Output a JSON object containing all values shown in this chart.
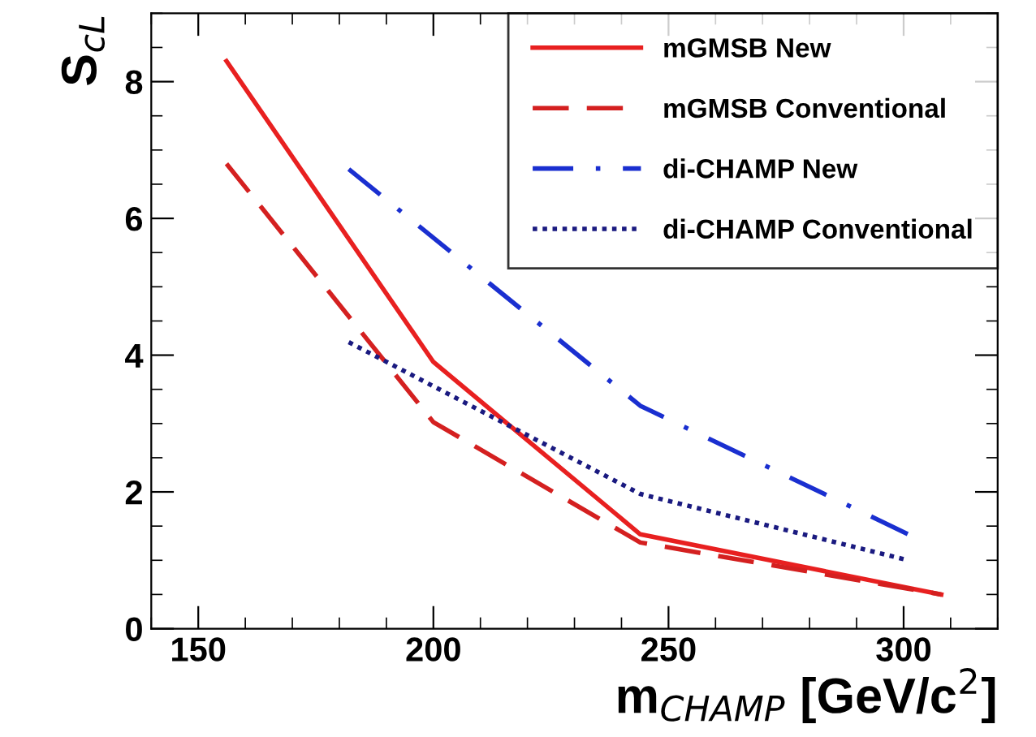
{
  "chart_data": {
    "type": "line",
    "xlabel": "m$_{CHAMP}$ [GeV/c$^{2}$]",
    "ylabel": "S$_{cL}$",
    "xlim": [
      140,
      320
    ],
    "xticks": [
      150,
      200,
      250,
      300
    ],
    "ylim": [
      0,
      9
    ],
    "yticks": [
      0,
      2,
      4,
      6,
      8
    ],
    "grid": false,
    "legend": "top right",
    "marker": "none",
    "series": [
      {
        "name": "mGMSB New",
        "color": "#e82020",
        "line_style": "solid",
        "x": [
          156,
          200,
          244,
          308
        ],
        "values": [
          8.3,
          3.9,
          1.38,
          0.5
        ]
      },
      {
        "name": "mGMSB Conventional",
        "color": "#d42020",
        "line_style": "dashed",
        "x": [
          156,
          200,
          244,
          308
        ],
        "values": [
          6.8,
          3.02,
          1.26,
          0.5
        ]
      },
      {
        "name": "di-CHAMP New",
        "color": "#1a2fd0",
        "line_style": "dashdot",
        "x": [
          182,
          244,
          301
        ],
        "values": [
          6.72,
          3.26,
          1.38
        ]
      },
      {
        "name": "di-CHAMP Conventional",
        "color": "#1a1a80",
        "line_style": "dotted",
        "x": [
          182,
          244,
          301
        ],
        "values": [
          4.19,
          1.97,
          1.0
        ]
      }
    ]
  }
}
